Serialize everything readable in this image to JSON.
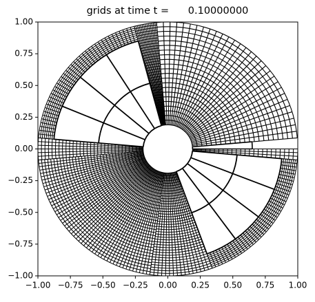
{
  "chart_data": {
    "type": "grid",
    "title": "grids at time t =      0.10000000",
    "xlim": [
      -1,
      1
    ],
    "ylim": [
      -1,
      1
    ],
    "xticks": [
      {
        "value": -1,
        "label": "−1.00"
      },
      {
        "value": -0.75,
        "label": "−0.75"
      },
      {
        "value": -0.5,
        "label": "−0.50"
      },
      {
        "value": -0.25,
        "label": "−0.25"
      },
      {
        "value": 0,
        "label": "0.00"
      },
      {
        "value": 0.25,
        "label": "0.25"
      },
      {
        "value": 0.5,
        "label": "0.50"
      },
      {
        "value": 0.75,
        "label": "0.75"
      },
      {
        "value": 1,
        "label": "1.00"
      }
    ],
    "yticks": [
      {
        "value": -1,
        "label": "−1.00"
      },
      {
        "value": -0.75,
        "label": "−0.75"
      },
      {
        "value": -0.5,
        "label": "−0.50"
      },
      {
        "value": -0.25,
        "label": "−0.25"
      },
      {
        "value": 0,
        "label": "0.00"
      },
      {
        "value": 0.25,
        "label": "0.25"
      },
      {
        "value": 0.5,
        "label": "0.50"
      },
      {
        "value": 0.75,
        "label": "0.75"
      },
      {
        "value": 1,
        "label": "1.00"
      }
    ],
    "color": "#000000"
  }
}
